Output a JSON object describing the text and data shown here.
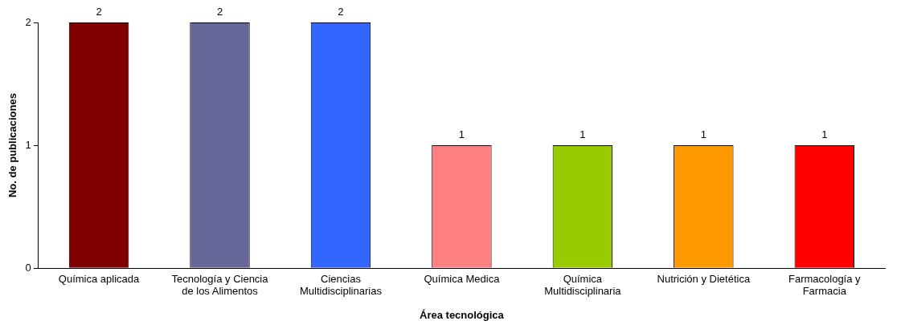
{
  "chart_data": {
    "type": "bar",
    "xlabel": "Área tecnológica",
    "ylabel": "No. de publicaciones",
    "categories": [
      "Química aplicada",
      "Tecnología y Ciencia de los Alimentos",
      "Ciencias Multidisciplinarias",
      "Química Medica",
      "Química Multidisciplinaria",
      "Nutrición y Dietética",
      "Farmacología y Farmacia"
    ],
    "values": [
      2,
      2,
      2,
      1,
      1,
      1,
      1
    ],
    "colors": [
      "#800000",
      "#666699",
      "#3366ff",
      "#ff8080",
      "#99cc00",
      "#ff9900",
      "#ff0000"
    ],
    "ylim": [
      0,
      2
    ],
    "yticks": [
      0,
      1,
      2
    ],
    "grid": false,
    "legend": false,
    "data_labels": true
  }
}
